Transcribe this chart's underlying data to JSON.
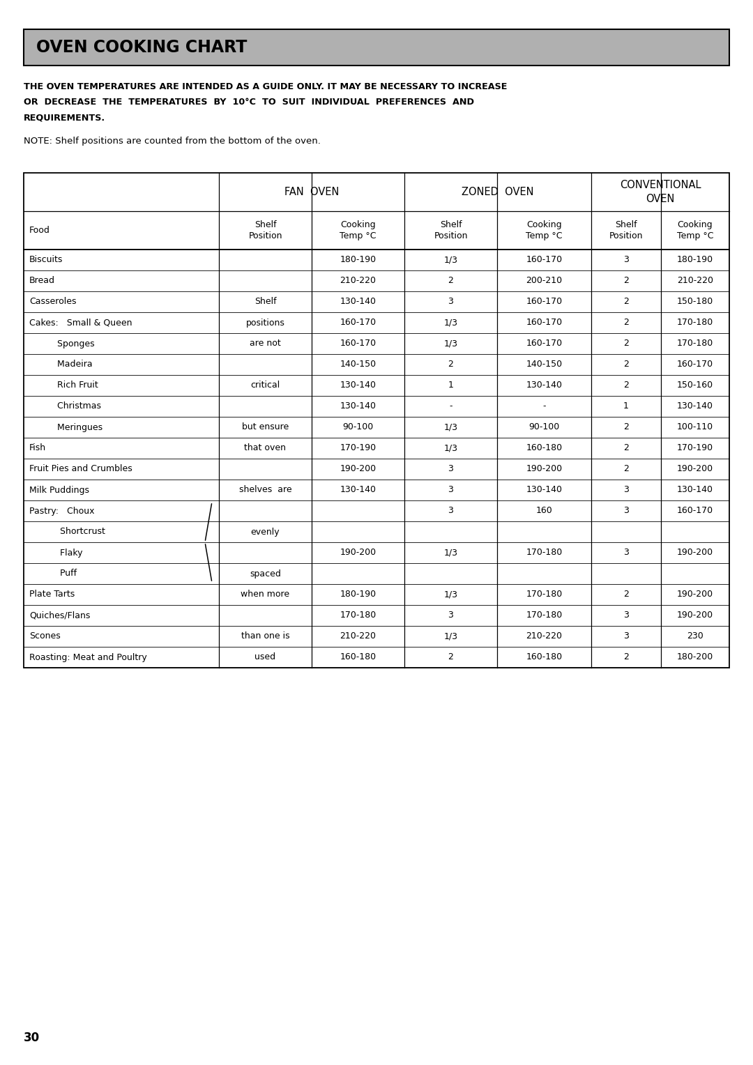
{
  "title": "OVEN COOKING CHART",
  "warning_line1": "THE OVEN TEMPERATURES ARE INTENDED AS A GUIDE ONLY. IT MAY BE NECESSARY TO INCREASE",
  "warning_line2": "OR  DECREASE  THE  TEMPERATURES  BY  10°C  TO  SUIT  INDIVIDUAL  PREFERENCES  AND",
  "warning_line3": "REQUIREMENTS.",
  "note_text": "NOTE: Shelf positions are counted from the bottom of the oven.",
  "rows": [
    [
      "Biscuits",
      "",
      "180-190",
      "1/3",
      "160-170",
      "3",
      "180-190"
    ],
    [
      "Bread",
      "",
      "210-220",
      "2",
      "200-210",
      "2",
      "210-220"
    ],
    [
      "Casseroles",
      "Shelf",
      "130-140",
      "3",
      "160-170",
      "2",
      "150-180"
    ],
    [
      "Cakes:   Small & Queen",
      "positions",
      "160-170",
      "1/3",
      "160-170",
      "2",
      "170-180"
    ],
    [
      "          Sponges",
      "are not",
      "160-170",
      "1/3",
      "160-170",
      "2",
      "170-180"
    ],
    [
      "          Madeira",
      "",
      "140-150",
      "2",
      "140-150",
      "2",
      "160-170"
    ],
    [
      "          Rich Fruit",
      "critical",
      "130-140",
      "1",
      "130-140",
      "2",
      "150-160"
    ],
    [
      "          Christmas",
      "",
      "130-140",
      "-",
      "-",
      "1",
      "130-140"
    ],
    [
      "          Meringues",
      "but ensure",
      "90-100",
      "1/3",
      "90-100",
      "2",
      "100-110"
    ],
    [
      "Fish",
      "that oven",
      "170-190",
      "1/3",
      "160-180",
      "2",
      "170-190"
    ],
    [
      "Fruit Pies and Crumbles",
      "",
      "190-200",
      "3",
      "190-200",
      "2",
      "190-200"
    ],
    [
      "Milk Puddings",
      "shelves  are",
      "130-140",
      "3",
      "130-140",
      "3",
      "130-140"
    ],
    [
      "Pastry:   Choux",
      "",
      "",
      "3",
      "160",
      "3",
      "160-170"
    ],
    [
      "           Shortcrust",
      "evenly",
      "",
      "",
      "",
      "",
      ""
    ],
    [
      "           Flaky",
      "",
      "190-200",
      "1/3",
      "170-180",
      "3",
      "190-200"
    ],
    [
      "           Puff",
      "spaced",
      "",
      "",
      "",
      "",
      ""
    ],
    [
      "Plate Tarts",
      "when more",
      "180-190",
      "1/3",
      "170-180",
      "2",
      "190-200"
    ],
    [
      "Quiches/Flans",
      "",
      "170-180",
      "3",
      "170-180",
      "3",
      "190-200"
    ],
    [
      "Scones",
      "than one is",
      "210-220",
      "1/3",
      "210-220",
      "3",
      "230"
    ],
    [
      "Roasting: Meat and Poultry",
      "used",
      "160-180",
      "2",
      "160-180",
      "2",
      "180-200"
    ]
  ],
  "page_number": "30",
  "background_color": "#ffffff",
  "title_bg": "#b0b0b0",
  "title_border": "#000000"
}
